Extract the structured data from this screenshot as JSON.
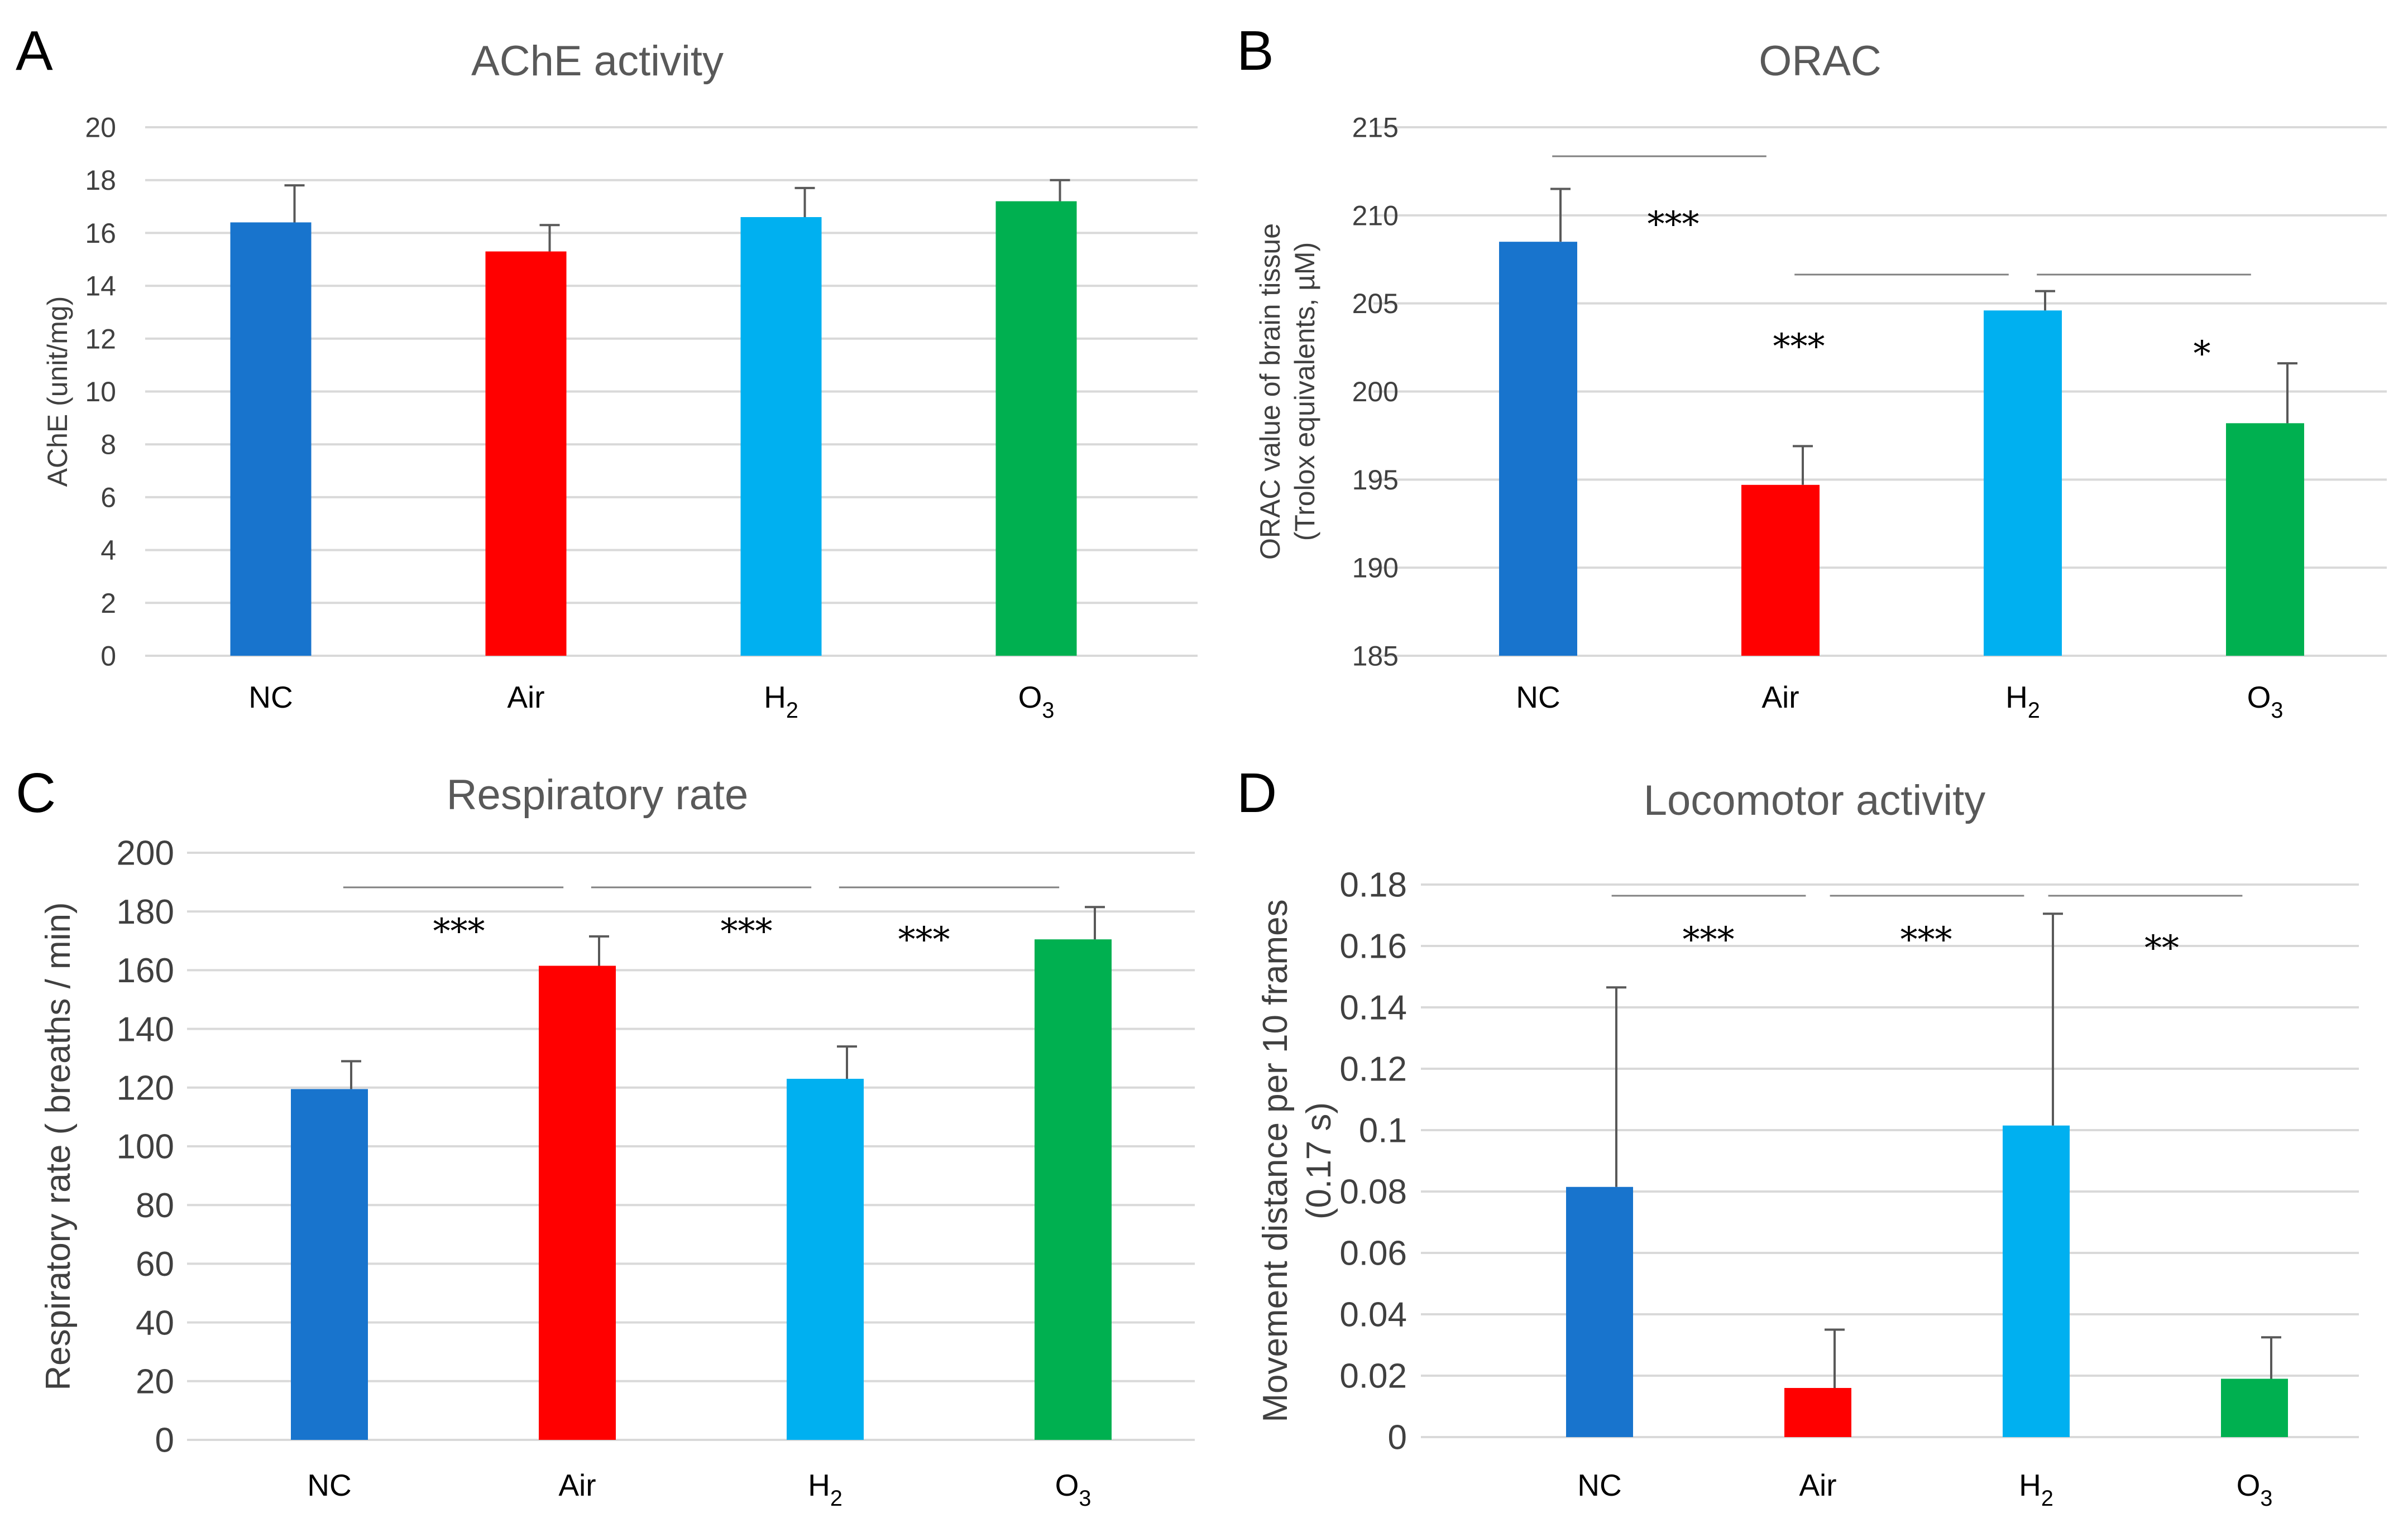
{
  "chart_data": [
    {
      "panel": "A",
      "type": "bar",
      "title": "AChE activity",
      "ylabel": [
        "AChE (unit/mg)"
      ],
      "ylim": [
        0,
        20
      ],
      "ytick_step": 2,
      "ytick_decimals": 0,
      "categories": [
        {
          "base": "NC",
          "sub": ""
        },
        {
          "base": "Air",
          "sub": ""
        },
        {
          "base": "H",
          "sub": "2"
        },
        {
          "base": "O",
          "sub": "3"
        }
      ],
      "values": [
        16.4,
        15.3,
        16.6,
        17.2
      ],
      "errors": [
        1.4,
        1.0,
        1.1,
        0.8
      ],
      "colors": [
        "#1874CD",
        "#FF0000",
        "#00B0F0",
        "#00B050"
      ],
      "significance": [],
      "grid": true
    },
    {
      "panel": "B",
      "type": "bar",
      "title": "ORAC",
      "ylabel": [
        "ORAC value of brain tissue",
        "(Trolox equivalents, µM)"
      ],
      "ylim": [
        185,
        215
      ],
      "ytick_step": 5,
      "ytick_decimals": 0,
      "categories": [
        {
          "base": "NC",
          "sub": ""
        },
        {
          "base": "Air",
          "sub": ""
        },
        {
          "base": "H",
          "sub": "2"
        },
        {
          "base": "O",
          "sub": "3"
        }
      ],
      "values": [
        208.5,
        194.7,
        204.6,
        198.2
      ],
      "errors": [
        3.0,
        2.2,
        1.1,
        3.4
      ],
      "colors": [
        "#1874CD",
        "#FF0000",
        "#00B0F0",
        "#00B050"
      ],
      "significance": [
        {
          "from": 0,
          "to": 1,
          "label": "***"
        },
        {
          "from": 1,
          "to": 2,
          "label": "***"
        },
        {
          "from": 2,
          "to": 3,
          "label": "*"
        }
      ],
      "grid": true
    },
    {
      "panel": "C",
      "type": "bar",
      "title": "Respiratory rate",
      "ylabel": [
        "Respiratory rate ( breaths / min)"
      ],
      "ylim": [
        0,
        200
      ],
      "ytick_step": 20,
      "ytick_decimals": 0,
      "categories": [
        {
          "base": "NC",
          "sub": ""
        },
        {
          "base": "Air",
          "sub": ""
        },
        {
          "base": "H",
          "sub": "2"
        },
        {
          "base": "O",
          "sub": "3"
        }
      ],
      "values": [
        119.5,
        161.5,
        123,
        170.5
      ],
      "errors": [
        9.5,
        10,
        11,
        11
      ],
      "colors": [
        "#1874CD",
        "#FF0000",
        "#00B0F0",
        "#00B050"
      ],
      "significance": [
        {
          "from": 0,
          "to": 1,
          "label": "***"
        },
        {
          "from": 1,
          "to": 2,
          "label": "***"
        },
        {
          "from": 2,
          "to": 3,
          "label": "***"
        }
      ],
      "grid": true
    },
    {
      "panel": "D",
      "type": "bar",
      "title": "Locomotor activity",
      "ylabel": [
        "Movement distance per 10 frames",
        "(0.17 s)"
      ],
      "ylim": [
        0,
        0.18
      ],
      "ytick_step": 0.02,
      "ytick_decimals": 2,
      "categories": [
        {
          "base": "NC",
          "sub": ""
        },
        {
          "base": "Air",
          "sub": ""
        },
        {
          "base": "H",
          "sub": "2"
        },
        {
          "base": "O",
          "sub": "3"
        }
      ],
      "values": [
        0.0815,
        0.016,
        0.1015,
        0.019
      ],
      "errors": [
        0.065,
        0.019,
        0.069,
        0.0135
      ],
      "colors": [
        "#1874CD",
        "#FF0000",
        "#00B0F0",
        "#00B050"
      ],
      "significance": [
        {
          "from": 0,
          "to": 1,
          "label": "***"
        },
        {
          "from": 1,
          "to": 2,
          "label": "***"
        },
        {
          "from": 2,
          "to": 3,
          "label": "**"
        }
      ],
      "grid": true
    }
  ]
}
